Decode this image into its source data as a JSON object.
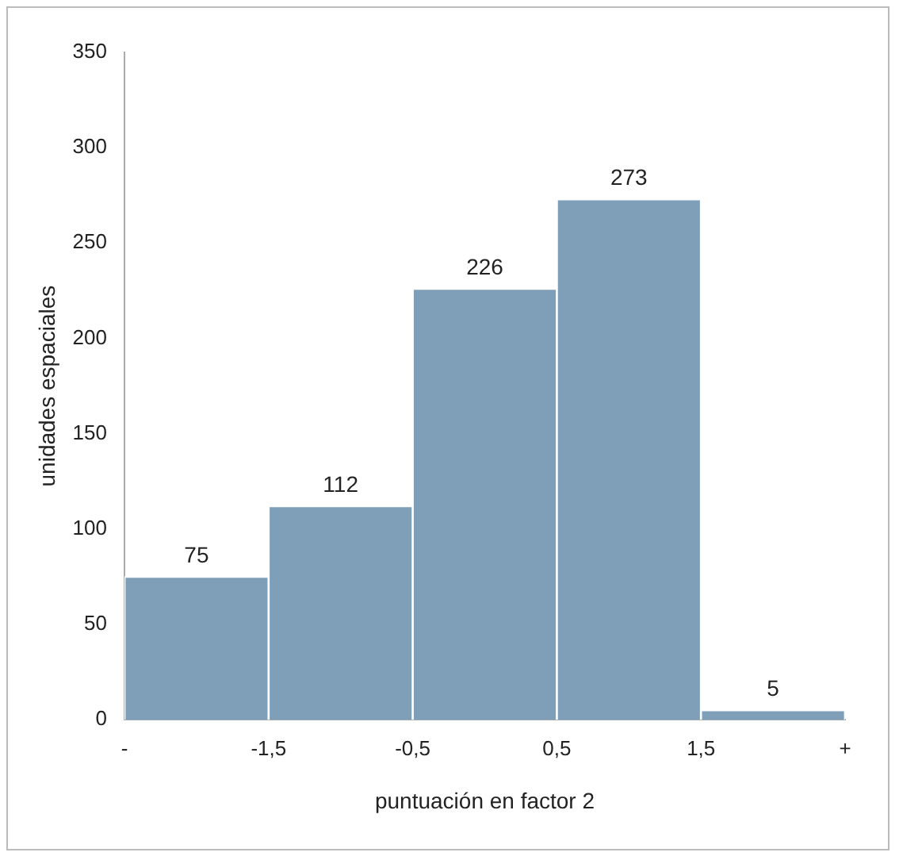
{
  "chart_data": {
    "type": "histogram",
    "xlabel": "puntuación en factor 2",
    "ylabel": "unidades espaciales",
    "bins": [
      -2.5,
      -1.5,
      -0.5,
      0.5,
      1.5,
      2.5
    ],
    "values": [
      75,
      112,
      226,
      273,
      5
    ],
    "color": "#7f9fb8",
    "xlim": [
      -2.5,
      2.5
    ],
    "xticks": [
      {
        "value": -2.5,
        "label": "-"
      },
      {
        "value": -1.5,
        "label": "-1,5"
      },
      {
        "value": -0.5,
        "label": "-0,5"
      },
      {
        "value": 0.5,
        "label": "0,5"
      },
      {
        "value": 1.5,
        "label": "1,5"
      },
      {
        "value": 2.5,
        "label": "+"
      }
    ],
    "ylim": [
      0,
      350
    ],
    "yticks": [
      0,
      50,
      100,
      150,
      200,
      250,
      300,
      350
    ],
    "data_labels": true,
    "grid": false,
    "legend": false
  }
}
